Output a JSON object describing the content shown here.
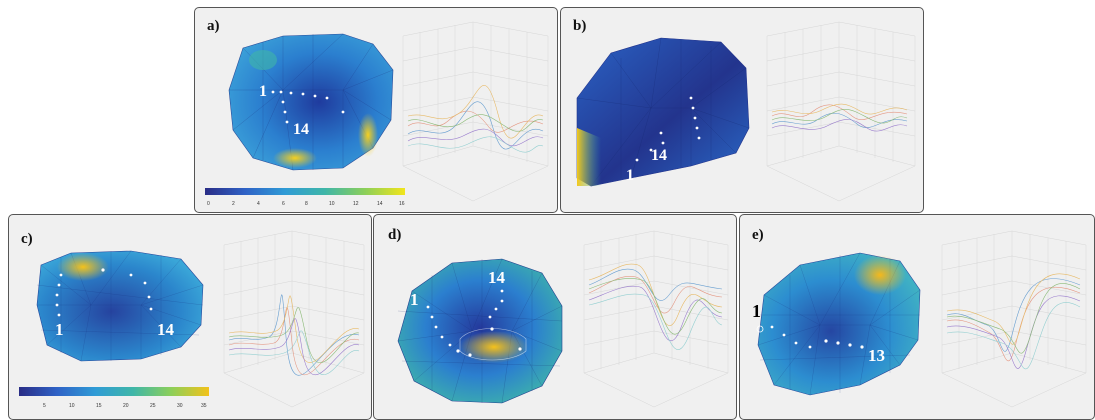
{
  "panels": [
    {
      "label": "a)",
      "electrode_labels": [
        "1",
        "14"
      ]
    },
    {
      "label": "b)",
      "electrode_labels": [
        "1",
        "14"
      ]
    },
    {
      "label": "c)",
      "electrode_labels": [
        "1",
        "14"
      ]
    },
    {
      "label": "d)",
      "electrode_labels": [
        "1",
        "14"
      ]
    },
    {
      "label": "e)",
      "electrode_labels": [
        "1",
        "13"
      ]
    }
  ],
  "colorbars": [
    {
      "ticks": [
        "0",
        "2",
        "4",
        "6",
        "8",
        "10",
        "12",
        "14",
        "16"
      ]
    },
    {
      "ticks": [
        "5",
        "10",
        "15",
        "20",
        "25",
        "30",
        "35"
      ]
    }
  ],
  "colors": {
    "low": "#2a3a9e",
    "mid": "#2f9bd6",
    "teal": "#3fb6a8",
    "high": "#f2c21b"
  }
}
